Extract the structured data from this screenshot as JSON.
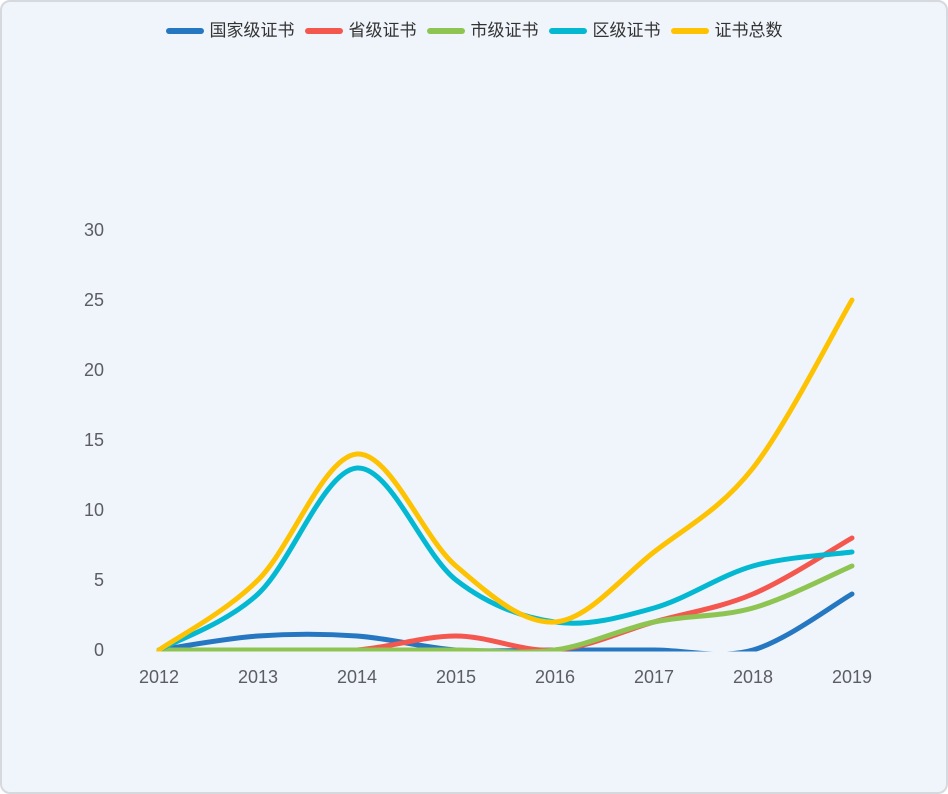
{
  "page": {
    "background_color": "#f0f5fb",
    "border_color": "#d6d9dd"
  },
  "chart_data": {
    "type": "line",
    "smooth": true,
    "symbols_shown": false,
    "title": "",
    "xlabel": "",
    "ylabel": "",
    "categories": [
      "2012",
      "2013",
      "2014",
      "2015",
      "2016",
      "2017",
      "2018",
      "2019"
    ],
    "series": [
      {
        "key": "national",
        "name": "国家级证书",
        "color": "#2577c2",
        "values": [
          0,
          1,
          1,
          0,
          0,
          0,
          0,
          4
        ]
      },
      {
        "key": "provincial",
        "name": "省级证书",
        "color": "#f4574e",
        "values": [
          0,
          0,
          0,
          1,
          0,
          2,
          4,
          8
        ]
      },
      {
        "key": "municipal",
        "name": "市级证书",
        "color": "#8ec452",
        "values": [
          0,
          0,
          0,
          0,
          0,
          2,
          3,
          6
        ]
      },
      {
        "key": "district",
        "name": "区级证书",
        "color": "#05b8d2",
        "values": [
          0,
          4,
          13,
          5,
          2,
          3,
          6,
          7
        ]
      },
      {
        "key": "total",
        "name": "证书总数",
        "color": "#fdc302",
        "values": [
          0,
          5,
          14,
          6,
          2,
          7,
          13,
          25
        ]
      }
    ],
    "ylim": [
      0,
      30
    ],
    "y_ticks": [
      0,
      5,
      10,
      15,
      20,
      25,
      30
    ],
    "grid": false,
    "axis_lines": false,
    "legend_position": "top-center",
    "line_width": 5,
    "axis_label_color": "#5b5d63",
    "legend_text_color": "#333333"
  }
}
